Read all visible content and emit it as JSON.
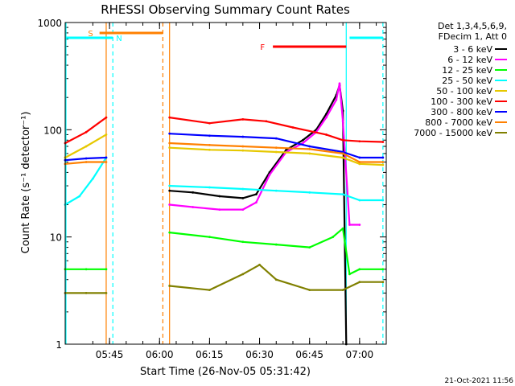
{
  "colors": {
    "background": "#ffffff",
    "axis": "#000000",
    "black": "#000000",
    "magenta": "#ff00ff",
    "green": "#00ff00",
    "cyan": "#00ffff",
    "gold": "#e6c800",
    "red": "#ff0000",
    "blue": "#0000ff",
    "orange": "#ff8000",
    "olive": "#808000"
  },
  "chart_data": {
    "type": "line",
    "title": "RHESSI Observing Summary Count Rates",
    "xlabel": "Start Time (26-Nov-05 05:31:42)",
    "ylabel": "Count Rate (s⁻¹ detector⁻¹)",
    "yscale": "log",
    "ylim": [
      1,
      1000
    ],
    "xlim": [
      "05:31:42",
      "07:08:00"
    ],
    "x_tick_labels": [
      "05:45",
      "06:00",
      "06:15",
      "06:30",
      "06:45",
      "07:00"
    ],
    "y_tick_labels": [
      "1",
      "10",
      "100",
      "1000"
    ],
    "legend_header": [
      "Det 1,3,4,5,6,9,",
      "FDecim 1, Att 0"
    ],
    "footer": "21-Oct-2021 11:56",
    "flags": [
      {
        "label": "S",
        "color": "#ff8000",
        "start": "05:42",
        "end": "06:01"
      },
      {
        "label": "N",
        "color": "#00ffff",
        "start": "05:31:42",
        "end": "05:46"
      },
      {
        "label": "N",
        "color": "#00ffff",
        "start": "06:57",
        "end": "07:07"
      },
      {
        "label": "F",
        "color": "#ff0000",
        "start": "06:34",
        "end": "06:56"
      }
    ],
    "segments": [
      {
        "start": "05:31:42",
        "end": "05:44"
      },
      {
        "start": "06:03",
        "end": "07:07"
      }
    ],
    "series": [
      {
        "name": "3 - 6 keV",
        "color": "#000000",
        "gap": true,
        "x": [
          "06:03",
          "06:10",
          "06:18",
          "06:25",
          "06:29",
          "06:33",
          "06:38",
          "06:43",
          "06:47",
          "06:50",
          "06:53",
          "06:54",
          "06:55",
          "06:56"
        ],
        "values": [
          27,
          26,
          24,
          23,
          25,
          40,
          65,
          80,
          100,
          140,
          210,
          260,
          150,
          1
        ]
      },
      {
        "name": "6 - 12 keV",
        "color": "#ff00ff",
        "gap": true,
        "x": [
          "06:03",
          "06:10",
          "06:18",
          "06:25",
          "06:29",
          "06:33",
          "06:38",
          "06:43",
          "06:47",
          "06:50",
          "06:53",
          "06:54",
          "06:55",
          "06:57",
          "07:00"
        ],
        "values": [
          20,
          19,
          18,
          18,
          21,
          38,
          62,
          75,
          95,
          130,
          190,
          270,
          120,
          13,
          13
        ]
      },
      {
        "name": "12 - 25 keV",
        "color": "#00ff00",
        "x": [
          "05:31:42",
          "05:38",
          "05:44",
          "06:03",
          "06:15",
          "06:25",
          "06:35",
          "06:45",
          "06:52",
          "06:55",
          "06:57",
          "07:00",
          "07:07"
        ],
        "values": [
          5,
          5,
          5,
          11,
          10,
          9,
          8.5,
          8,
          10,
          12,
          4.5,
          5,
          5
        ]
      },
      {
        "name": "25 - 50 keV",
        "color": "#00ffff",
        "x": [
          "05:31:42",
          "05:36",
          "05:40",
          "05:44",
          "06:03",
          "06:15",
          "06:25",
          "06:35",
          "06:45",
          "06:55",
          "07:00",
          "07:07"
        ],
        "values": [
          20,
          24,
          35,
          55,
          30,
          29,
          28,
          27,
          26,
          25,
          22,
          22
        ]
      },
      {
        "name": "50 - 100 keV",
        "color": "#e6c800",
        "x": [
          "05:31:42",
          "05:38",
          "05:44",
          "06:03",
          "06:15",
          "06:25",
          "06:35",
          "06:45",
          "06:55",
          "07:00",
          "07:07"
        ],
        "values": [
          55,
          70,
          90,
          68,
          65,
          64,
          62,
          60,
          55,
          48,
          47
        ]
      },
      {
        "name": "100 - 300 keV",
        "color": "#ff0000",
        "x": [
          "05:31:42",
          "05:38",
          "05:44",
          "06:03",
          "06:15",
          "06:25",
          "06:32",
          "06:40",
          "06:50",
          "06:55",
          "07:00",
          "07:07"
        ],
        "values": [
          75,
          95,
          130,
          130,
          115,
          125,
          120,
          105,
          90,
          80,
          78,
          77
        ]
      },
      {
        "name": "300 - 800 keV",
        "color": "#0000ff",
        "x": [
          "05:31:42",
          "05:38",
          "05:44",
          "06:03",
          "06:15",
          "06:25",
          "06:35",
          "06:45",
          "06:55",
          "07:00",
          "07:07"
        ],
        "values": [
          52,
          54,
          55,
          92,
          88,
          86,
          83,
          70,
          62,
          55,
          55
        ]
      },
      {
        "name": "800 - 7000 keV",
        "color": "#ff8000",
        "x": [
          "05:31:42",
          "05:38",
          "05:44",
          "06:03",
          "06:15",
          "06:25",
          "06:35",
          "06:45",
          "06:55",
          "07:00",
          "07:07"
        ],
        "values": [
          48,
          50,
          50,
          75,
          72,
          70,
          68,
          66,
          60,
          50,
          50
        ]
      },
      {
        "name": "7000 - 15000 keV",
        "color": "#808000",
        "x": [
          "05:31:42",
          "05:38",
          "05:44",
          "06:03",
          "06:15",
          "06:25",
          "06:30",
          "06:35",
          "06:45",
          "06:55",
          "07:00",
          "07:07"
        ],
        "values": [
          3,
          3,
          3,
          3.5,
          3.2,
          4.5,
          5.5,
          4,
          3.2,
          3.2,
          3.8,
          3.8
        ]
      }
    ]
  }
}
